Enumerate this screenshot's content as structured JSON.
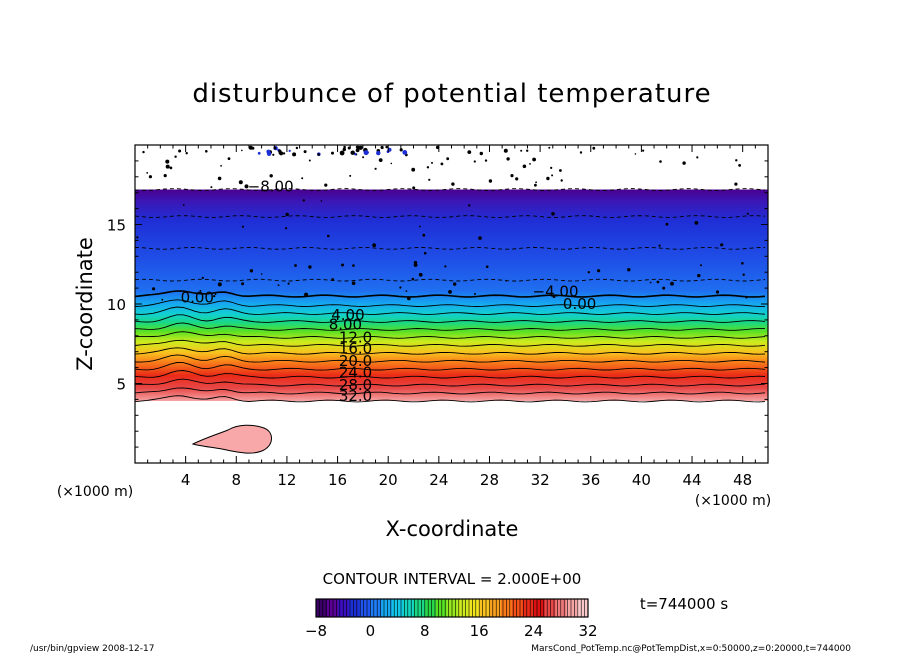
{
  "chart_data": {
    "type": "heatmap",
    "title": "disturbunce of potential temperature",
    "xlabel": "X-coordinate",
    "ylabel": "Z-coordinate",
    "x_unit": "(×1000 m)",
    "z_unit": "(×1000 m)",
    "xlim": [
      0,
      50
    ],
    "ylim": [
      0,
      20
    ],
    "x_ticks": [
      "4",
      "8",
      "12",
      "16",
      "20",
      "24",
      "28",
      "32",
      "36",
      "40",
      "44",
      "48"
    ],
    "y_ticks": [
      "5",
      "10",
      "15"
    ],
    "contour_interval": "CONTOUR INTERVAL = 2.000E+00",
    "time": "t=744000 s",
    "colorbar": {
      "min": -8,
      "max": 32,
      "tick_labels": [
        "−8",
        "0",
        "8",
        "16",
        "24",
        "32"
      ],
      "colors": [
        "#3a0068",
        "#5a0096",
        "#3a10c0",
        "#1f2fd6",
        "#1f55ee",
        "#1e7cf5",
        "#16a8f0",
        "#12c8e8",
        "#12d6c0",
        "#1ad884",
        "#28d84a",
        "#58e024",
        "#98e81e",
        "#cdeb1e",
        "#f0e61e",
        "#f8c41e",
        "#f8a01e",
        "#f87a1a",
        "#f45018",
        "#ea2a18",
        "#dc1212",
        "#e84848",
        "#f07a7a",
        "#f6a4a4",
        "#fac8c8"
      ]
    },
    "profile": [
      {
        "z": 3.9,
        "value": 32
      },
      {
        "z": 4.4,
        "value": 30
      },
      {
        "z": 4.9,
        "value": 28
      },
      {
        "z": 5.4,
        "value": 26
      },
      {
        "z": 5.9,
        "value": 24
      },
      {
        "z": 6.4,
        "value": 22
      },
      {
        "z": 6.9,
        "value": 20
      },
      {
        "z": 7.4,
        "value": 18
      },
      {
        "z": 7.9,
        "value": 16
      },
      {
        "z": 8.4,
        "value": 14
      },
      {
        "z": 8.9,
        "value": 12
      },
      {
        "z": 9.4,
        "value": 8
      },
      {
        "z": 9.9,
        "value": 4
      },
      {
        "z": 10.5,
        "value": 0
      },
      {
        "z": 11.5,
        "value": -2
      },
      {
        "z": 13.5,
        "value": -4
      },
      {
        "z": 15.5,
        "value": -6
      },
      {
        "z": 17.2,
        "value": -8
      }
    ],
    "contour_labels": [
      "−8.00",
      "−4.00",
      "0.00",
      "0.00",
      "4.00",
      "8.00",
      "12.0",
      "16.0",
      "20.0",
      "24.0",
      "28.0",
      "32.0"
    ]
  },
  "footer": {
    "left": "/usr/bin/gpview   2008-12-17",
    "right": "MarsCond_PotTemp.nc@PotTempDist,x=0:50000,z=0:20000,t=744000"
  }
}
